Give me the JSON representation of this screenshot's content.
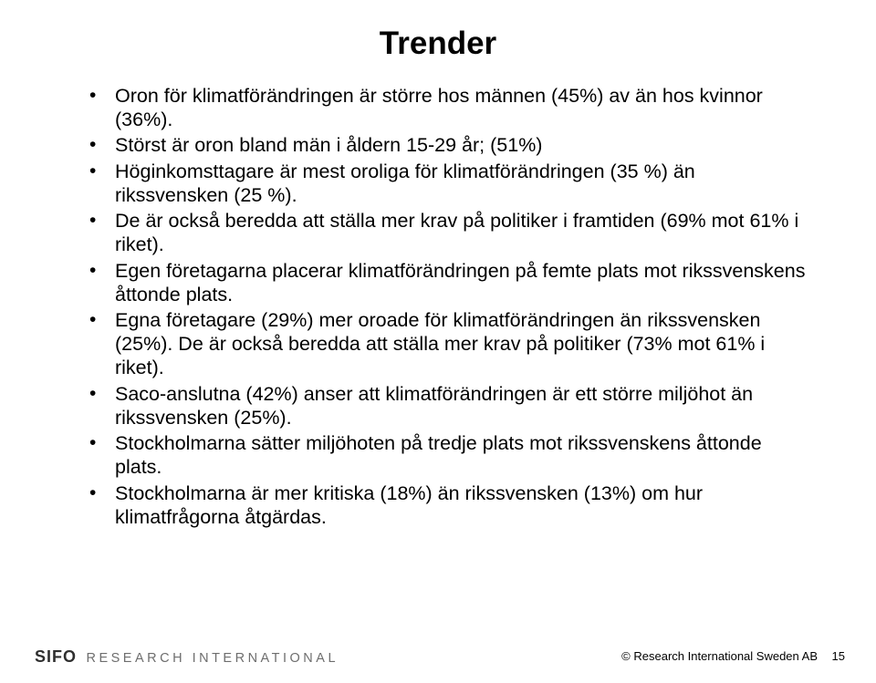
{
  "title": "Trender",
  "bullets": [
    "Oron för klimatförändringen är större hos männen (45%) av än hos kvinnor (36%).",
    "Störst är oron bland män i åldern 15-29 år; (51%)",
    "Höginkomsttagare är mest oroliga för klimatförändringen (35 %) än rikssvensken (25 %).",
    "De är också beredda att ställa mer krav på politiker i framtiden (69% mot 61% i riket).",
    "Egen företagarna placerar klimatförändringen på femte plats mot rikssvenskens åttonde plats.",
    "Egna företagare (29%) mer oroade för klimatförändringen än rikssvensken (25%). De är också beredda att ställa mer krav på politiker (73% mot 61% i riket).",
    "Saco-anslutna (42%) anser att klimatförändringen är ett större miljöhot än rikssvensken (25%).",
    "Stockholmarna sätter miljöhoten på tredje plats mot rikssvenskens åttonde plats.",
    "Stockholmarna är mer kritiska (18%) än rikssvensken (13%) om hur klimatfrågorna åtgärdas."
  ],
  "logo": {
    "sifo": "SIFO",
    "research": "RESEARCH INTERNATIONAL"
  },
  "copyright": "© Research International Sweden AB",
  "page_number": "15",
  "colors": {
    "bg": "#ffffff",
    "text": "#000000",
    "logo_dark": "#2f2f2f",
    "logo_light": "#6e6e6e"
  }
}
